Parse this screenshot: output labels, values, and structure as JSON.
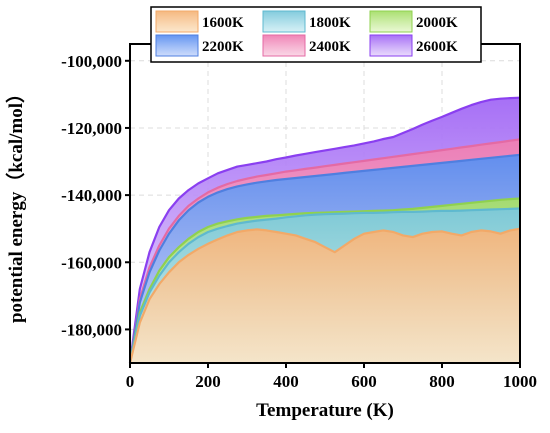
{
  "chart_data": {
    "type": "area",
    "xlabel": "Temperature (K)",
    "ylabel": "potential energy（kcal/mol）",
    "xlim": [
      0,
      1000
    ],
    "ylim": [
      -190000,
      -95000
    ],
    "x_ticks": [
      0,
      200,
      400,
      600,
      800,
      1000
    ],
    "x_tick_labels": [
      "0",
      "200",
      "400",
      "600",
      "800",
      "1000"
    ],
    "y_ticks": [
      -100000,
      -120000,
      -140000,
      -160000,
      -180000
    ],
    "y_tick_labels": [
      "-100,000",
      "-120,000",
      "-140,000",
      "-160,000",
      "-180,000"
    ],
    "grid": true,
    "legend_placement": "top",
    "x": [
      0,
      25,
      50,
      75,
      100,
      125,
      150,
      175,
      200,
      225,
      250,
      275,
      300,
      325,
      350,
      375,
      400,
      425,
      450,
      475,
      500,
      525,
      550,
      575,
      600,
      625,
      650,
      675,
      700,
      725,
      750,
      775,
      800,
      825,
      850,
      875,
      900,
      925,
      950,
      975,
      1000
    ],
    "series": [
      {
        "name": "1600K",
        "color": "#f2a968",
        "fill_top": "#f5b57a",
        "fill_bottom": "#fbe3c3",
        "values": [
          -190000,
          -178000,
          -171000,
          -166500,
          -163000,
          -160000,
          -157800,
          -156000,
          -154500,
          -153200,
          -152000,
          -151000,
          -150500,
          -150200,
          -150500,
          -151000,
          -151500,
          -152000,
          -153000,
          -154000,
          -155500,
          -157000,
          -155000,
          -153000,
          -151500,
          -151000,
          -150500,
          -151000,
          -152000,
          -152500,
          -151500,
          -151000,
          -150800,
          -151500,
          -152000,
          -151000,
          -150500,
          -150800,
          -151500,
          -150500,
          -150000
        ]
      },
      {
        "name": "1800K",
        "color": "#5fb9cf",
        "fill_top": "#7cc8db",
        "fill_bottom": "#cfeef4",
        "values": [
          -190000,
          -176000,
          -169000,
          -164000,
          -160000,
          -157000,
          -154500,
          -152500,
          -151000,
          -150000,
          -149200,
          -148500,
          -148000,
          -147600,
          -147300,
          -147000,
          -146600,
          -146300,
          -146000,
          -145800,
          -145700,
          -145600,
          -145500,
          -145400,
          -145300,
          -145300,
          -145200,
          -145100,
          -145000,
          -145000,
          -144900,
          -144800,
          -144700,
          -144700,
          -144600,
          -144500,
          -144400,
          -144300,
          -144200,
          -144100,
          -144000
        ]
      },
      {
        "name": "2000K",
        "color": "#8fd14f",
        "fill_top": "#a6de6a",
        "fill_bottom": "#e6f7cc",
        "values": [
          -190000,
          -175000,
          -168000,
          -162500,
          -158500,
          -155500,
          -153000,
          -151000,
          -149500,
          -148500,
          -147800,
          -147200,
          -146800,
          -146500,
          -146200,
          -146000,
          -145800,
          -145600,
          -145400,
          -145300,
          -145200,
          -145100,
          -145000,
          -144900,
          -144800,
          -144700,
          -144600,
          -144500,
          -144300,
          -144100,
          -143800,
          -143500,
          -143200,
          -142900,
          -142600,
          -142300,
          -142000,
          -141700,
          -141400,
          -141200,
          -141000
        ]
      },
      {
        "name": "2200K",
        "color": "#4f7fe0",
        "fill_top": "#5b8ff0",
        "fill_bottom": "#c4d6fb",
        "values": [
          -190000,
          -172000,
          -163000,
          -156500,
          -151500,
          -147500,
          -144500,
          -142200,
          -140500,
          -139200,
          -138200,
          -137400,
          -136800,
          -136300,
          -135900,
          -135500,
          -135200,
          -134900,
          -134600,
          -134300,
          -134000,
          -133700,
          -133400,
          -133100,
          -132800,
          -132500,
          -132200,
          -131900,
          -131600,
          -131300,
          -131000,
          -130700,
          -130400,
          -130100,
          -129800,
          -129500,
          -129200,
          -128900,
          -128600,
          -128300,
          -128000
        ]
      },
      {
        "name": "2400K",
        "color": "#e46aa4",
        "fill_top": "#ef7eb3",
        "fill_bottom": "#f9d0e2",
        "values": [
          -190000,
          -171000,
          -161500,
          -155000,
          -150000,
          -146200,
          -143200,
          -141000,
          -139200,
          -137800,
          -136700,
          -135800,
          -135100,
          -134500,
          -134000,
          -133500,
          -133000,
          -132600,
          -132200,
          -131800,
          -131400,
          -131000,
          -130600,
          -130200,
          -129800,
          -129400,
          -129000,
          -128600,
          -128200,
          -127800,
          -127400,
          -127000,
          -126600,
          -126200,
          -125800,
          -125400,
          -125000,
          -124600,
          -124200,
          -123800,
          -123400
        ]
      },
      {
        "name": "2600K",
        "color": "#8a3ff0",
        "fill_top": "#a268f5",
        "fill_bottom": "#e6d4fc",
        "values": [
          -190000,
          -168000,
          -157000,
          -149500,
          -144500,
          -141000,
          -138500,
          -136500,
          -135000,
          -133500,
          -132500,
          -131500,
          -131000,
          -130500,
          -130000,
          -129300,
          -128800,
          -128200,
          -127700,
          -127200,
          -126700,
          -126200,
          -125700,
          -125200,
          -124600,
          -124000,
          -123300,
          -122700,
          -121500,
          -120300,
          -119000,
          -117800,
          -116700,
          -115500,
          -114300,
          -113200,
          -112300,
          -111600,
          -111300,
          -111100,
          -111000
        ]
      }
    ]
  }
}
